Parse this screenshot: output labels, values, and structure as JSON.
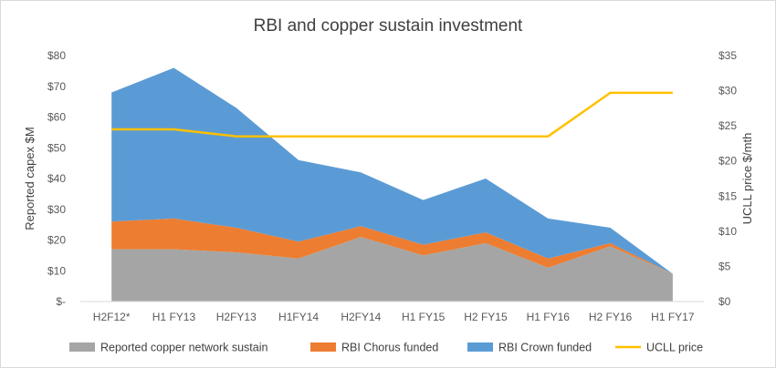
{
  "chart_data": {
    "type": "area",
    "title": "RBI and copper sustain investment",
    "ylabel": "Reported capex $M",
    "y2label": "UCLL price $/mth",
    "categories": [
      "H2F12*",
      "H1 FY13",
      "H2FY13",
      "H1FY14",
      "H2FY14",
      "H1 FY15",
      "H2 FY15",
      "H1 FY16",
      "H2 FY16",
      "H1 FY17"
    ],
    "ylim": [
      0,
      80
    ],
    "y2lim": [
      0,
      35
    ],
    "y_ticks": [
      0,
      10,
      20,
      30,
      40,
      50,
      60,
      70,
      80
    ],
    "y_tick_labels": [
      "$-",
      "$10",
      "$20",
      "$30",
      "$40",
      "$50",
      "$60",
      "$70",
      "$80"
    ],
    "y2_ticks": [
      0,
      5,
      10,
      15,
      20,
      25,
      30,
      35
    ],
    "y2_tick_labels": [
      "$0",
      "$5",
      "$10",
      "$15",
      "$20",
      "$25",
      "$30",
      "$35"
    ],
    "stacked": true,
    "grid": false,
    "legend_position": "bottom",
    "series": [
      {
        "name": "Reported copper network sustain",
        "type": "area",
        "axis": "left",
        "color": "#a5a5a5",
        "values": [
          17,
          17,
          16,
          14,
          21,
          15,
          19,
          11,
          18,
          9
        ]
      },
      {
        "name": "RBI Chorus funded",
        "type": "area",
        "axis": "left",
        "color": "#ed7d31",
        "values": [
          9,
          10,
          8,
          5.5,
          3.5,
          3.5,
          3.5,
          3,
          1,
          0
        ]
      },
      {
        "name": "RBI Crown funded",
        "type": "area",
        "axis": "left",
        "color": "#5b9bd5",
        "values": [
          42,
          49,
          39,
          26.5,
          17.5,
          14.5,
          17.5,
          13,
          5,
          0
        ]
      },
      {
        "name": "UCLL price",
        "type": "line",
        "axis": "right",
        "color": "#ffc000",
        "values": [
          24.5,
          24.5,
          23.5,
          23.5,
          23.5,
          23.5,
          23.5,
          23.5,
          29.7,
          29.7
        ]
      }
    ]
  }
}
